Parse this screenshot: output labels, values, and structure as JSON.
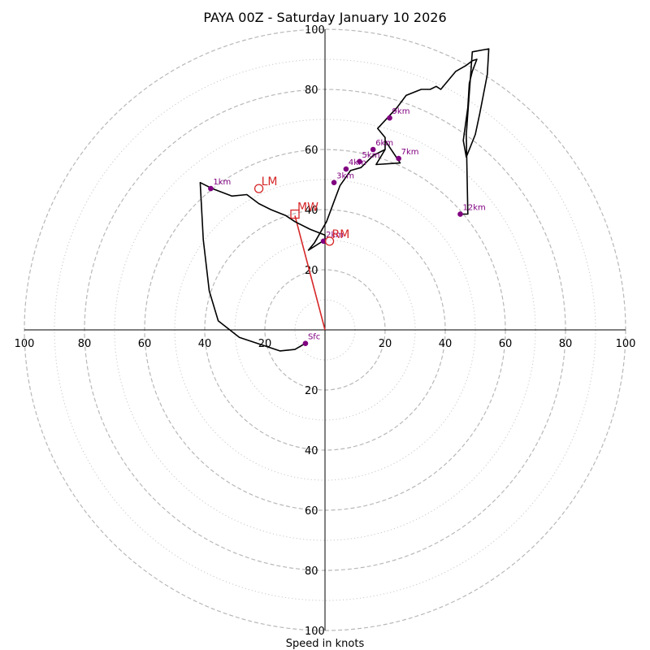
{
  "chart_data": {
    "type": "line",
    "title": "PAYA 00Z - Saturday January 10 2026",
    "xlabel": "Speed in knots",
    "ylabel": "",
    "xlim": [
      -100,
      100
    ],
    "ylim": [
      -100,
      100
    ],
    "rings_dashed": [
      20,
      40,
      60,
      80,
      100
    ],
    "rings_dotted": [
      10,
      30,
      50,
      70,
      90
    ],
    "x_tick_labels": [
      {
        "value": -100,
        "text": "100"
      },
      {
        "value": -80,
        "text": "80"
      },
      {
        "value": -60,
        "text": "60"
      },
      {
        "value": -40,
        "text": "40"
      },
      {
        "value": -20,
        "text": "20"
      },
      {
        "value": 20,
        "text": "20"
      },
      {
        "value": 40,
        "text": "40"
      },
      {
        "value": 60,
        "text": "60"
      },
      {
        "value": 80,
        "text": "80"
      },
      {
        "value": 100,
        "text": "100"
      }
    ],
    "y_tick_labels": [
      {
        "value": 100,
        "text": "100"
      },
      {
        "value": 80,
        "text": "80"
      },
      {
        "value": 60,
        "text": "60"
      },
      {
        "value": 40,
        "text": "40"
      },
      {
        "value": 20,
        "text": "20"
      },
      {
        "value": -20,
        "text": "20"
      },
      {
        "value": -40,
        "text": "40"
      },
      {
        "value": -60,
        "text": "60"
      },
      {
        "value": -80,
        "text": "80"
      },
      {
        "value": -100,
        "text": "100"
      }
    ],
    "hodograph": {
      "name": "hodograph trace",
      "color": "#000000",
      "x": [
        -6.5,
        -10,
        -15,
        -28.5,
        -35.5,
        -38.5,
        -40.5,
        -41.5,
        -37.5,
        -31,
        -26,
        -22,
        -18,
        -13,
        -10,
        -5,
        0,
        0,
        -5.5,
        -3.5,
        0.5,
        3.5,
        5,
        8.5,
        12,
        16,
        20,
        20,
        25,
        25,
        17,
        20,
        20,
        17.5,
        24,
        27,
        32,
        35,
        37,
        38.5,
        43.5,
        47,
        49,
        50.5,
        49,
        48,
        47.5,
        46,
        47,
        50,
        51.5,
        54,
        54.5,
        49,
        47,
        47.5,
        45,
        45
      ],
      "y": [
        -4.5,
        -6.5,
        -7,
        -2.5,
        3,
        13,
        30,
        49,
        47,
        44.5,
        45,
        42,
        40,
        38,
        36,
        33.5,
        31.5,
        30,
        26.5,
        29,
        36,
        44,
        48,
        53,
        54,
        58,
        60,
        63,
        55.5,
        55.5,
        55,
        60,
        64,
        67,
        74,
        78,
        80,
        80,
        81,
        80,
        86,
        88,
        89.5,
        90,
        86,
        82,
        74,
        63,
        57.5,
        65,
        72,
        85,
        93.5,
        92.5,
        65,
        38.5,
        38.5,
        38.5
      ]
    },
    "height_markers": {
      "color": "#800080",
      "points": [
        {
          "label": "Sfc",
          "x": -6.5,
          "y": -4.5
        },
        {
          "label": "1km",
          "x": -38,
          "y": 47
        },
        {
          "label": "2km",
          "x": -0.5,
          "y": 29.5
        },
        {
          "label": "3km",
          "x": 3,
          "y": 49
        },
        {
          "label": "4km",
          "x": 7,
          "y": 53.5
        },
        {
          "label": "5km",
          "x": 11.5,
          "y": 56
        },
        {
          "label": "6km",
          "x": 16,
          "y": 60
        },
        {
          "label": "7km",
          "x": 24.5,
          "y": 57
        },
        {
          "label": "9km",
          "x": 21.5,
          "y": 70.5
        },
        {
          "label": "12km",
          "x": 45,
          "y": 38.5
        }
      ]
    },
    "storm_motion": {
      "color": "#d62728",
      "vector_from": {
        "x": 0,
        "y": 0
      },
      "vector_to": {
        "x": -10,
        "y": 38
      },
      "points": [
        {
          "label": "MW",
          "marker": "square",
          "x": -10,
          "y": 38.5
        },
        {
          "label": "LM",
          "marker": "circle",
          "x": -22,
          "y": 47
        },
        {
          "label": "RM",
          "marker": "circle",
          "x": 1.5,
          "y": 29.5
        }
      ]
    }
  }
}
